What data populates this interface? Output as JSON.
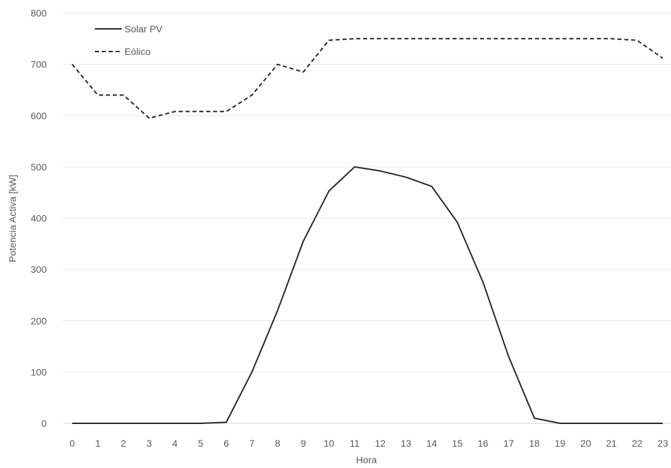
{
  "chart_data": {
    "type": "line",
    "title": "",
    "xlabel": "Hora",
    "ylabel": "Potencia Activa [kW]",
    "ylim": [
      0,
      800
    ],
    "y_ticks": [
      0,
      100,
      200,
      300,
      400,
      500,
      600,
      700,
      800
    ],
    "x": [
      0,
      1,
      2,
      3,
      4,
      5,
      6,
      7,
      8,
      9,
      10,
      11,
      12,
      13,
      14,
      15,
      16,
      17,
      18,
      19,
      20,
      21,
      22,
      23
    ],
    "grid": true,
    "legend_position": "top-left",
    "series": [
      {
        "name": "Solar PV",
        "style": "solid",
        "color": "#262626",
        "values": [
          0,
          0,
          0,
          0,
          0,
          0,
          2,
          100,
          220,
          355,
          453,
          500,
          492,
          480,
          462,
          392,
          275,
          130,
          10,
          0,
          0,
          0,
          0,
          0
        ]
      },
      {
        "name": "Eólico",
        "style": "dashed",
        "color": "#262626",
        "values": [
          700,
          640,
          640,
          595,
          608,
          608,
          608,
          640,
          700,
          685,
          747,
          750,
          750,
          750,
          750,
          750,
          750,
          750,
          750,
          750,
          750,
          750,
          747,
          712
        ]
      }
    ]
  }
}
